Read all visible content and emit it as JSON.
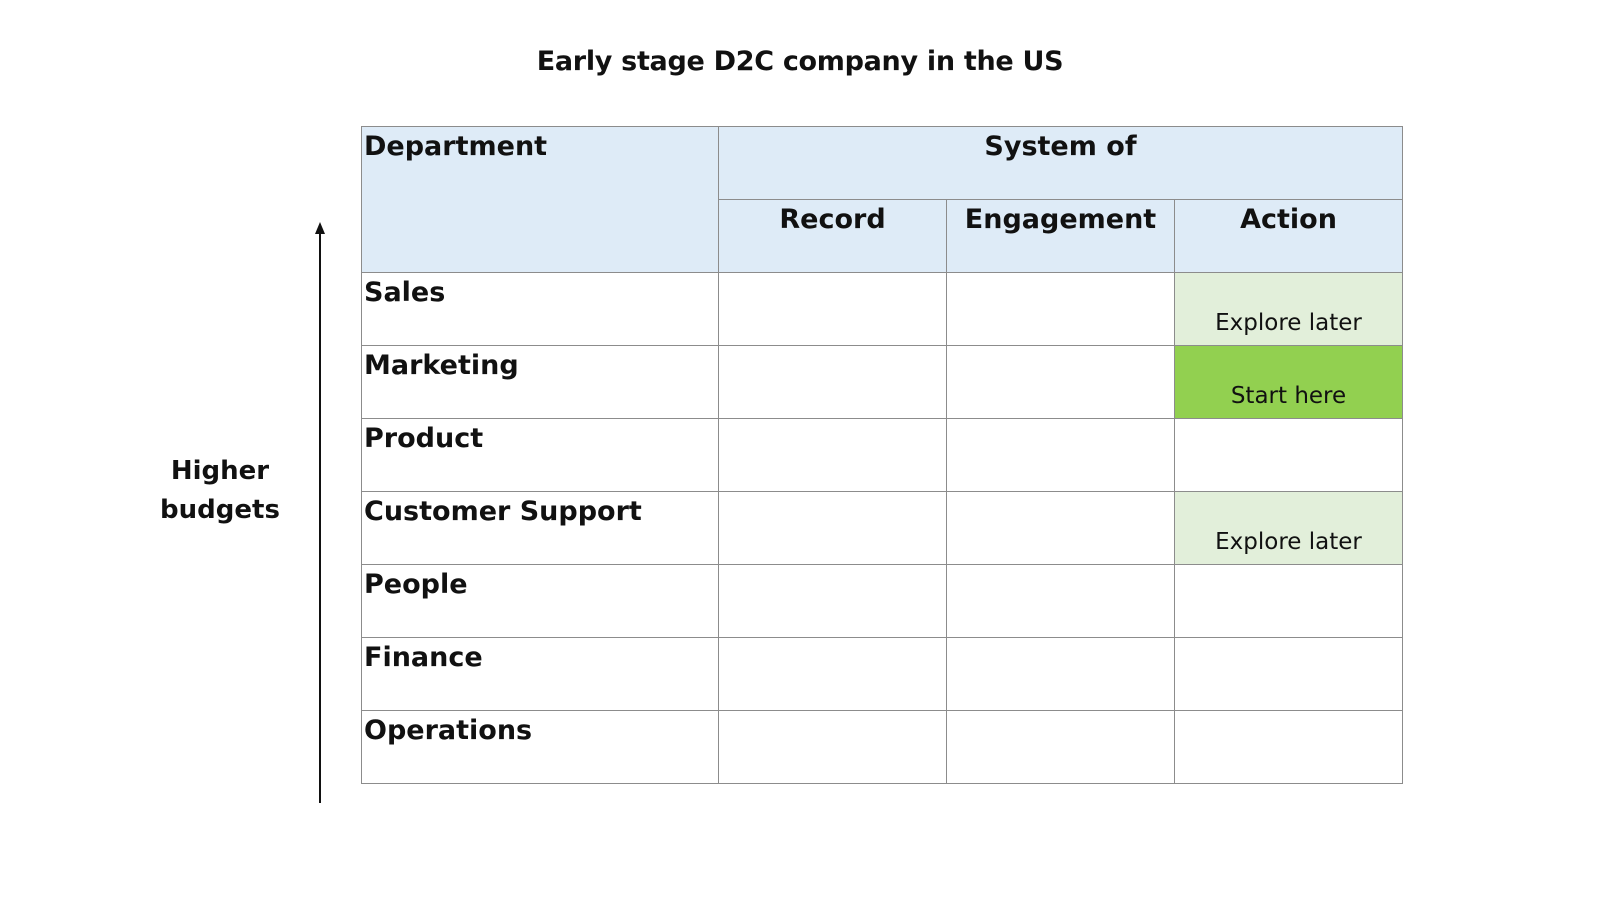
{
  "title": "Early stage D2C company in the US",
  "axis": {
    "label_line1": "Higher",
    "label_line2": "budgets"
  },
  "table": {
    "header": {
      "department": "Department",
      "group": "System of",
      "columns": [
        "Record",
        "Engagement",
        "Action"
      ]
    },
    "rows": [
      {
        "department": "Sales",
        "record": "",
        "engagement": "",
        "action": "Explore later",
        "action_status": "explore"
      },
      {
        "department": "Marketing",
        "record": "",
        "engagement": "",
        "action": "Start here",
        "action_status": "start"
      },
      {
        "department": "Product",
        "record": "",
        "engagement": "",
        "action": "",
        "action_status": "none"
      },
      {
        "department": "Customer Support",
        "record": "",
        "engagement": "",
        "action": "Explore later",
        "action_status": "explore"
      },
      {
        "department": "People",
        "record": "",
        "engagement": "",
        "action": "",
        "action_status": "none"
      },
      {
        "department": "Finance",
        "record": "",
        "engagement": "",
        "action": "",
        "action_status": "none"
      },
      {
        "department": "Operations",
        "record": "",
        "engagement": "",
        "action": "",
        "action_status": "none"
      }
    ]
  },
  "colors": {
    "header_bg": "#deebf7",
    "explore_bg": "#e2efda",
    "start_bg": "#92d050",
    "border": "#8c8c8c"
  }
}
